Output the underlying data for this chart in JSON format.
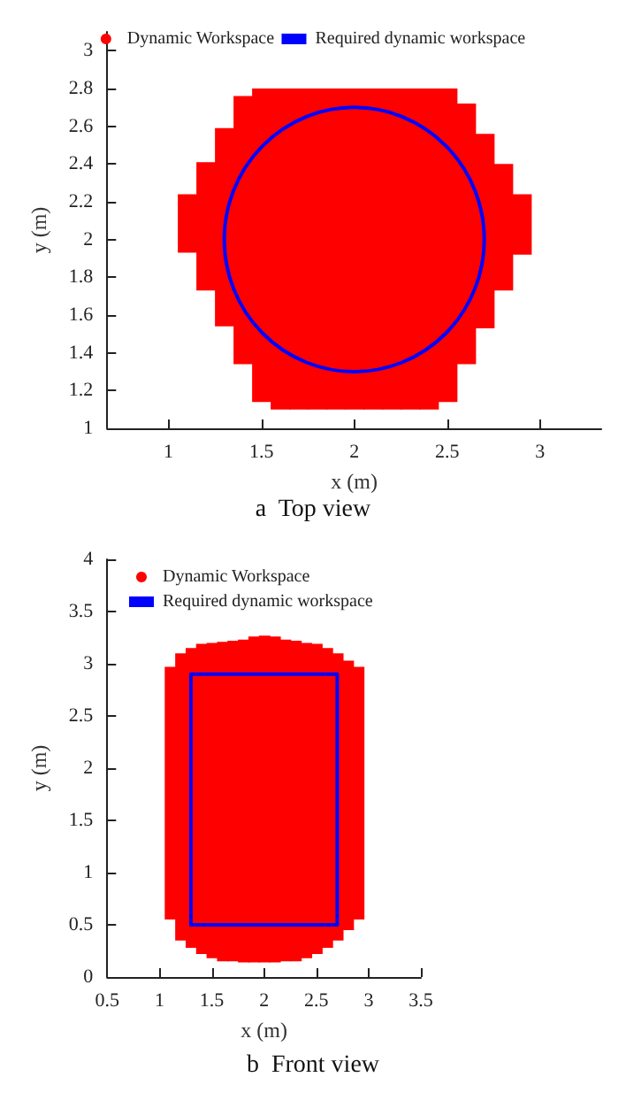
{
  "chart_data": [
    {
      "type": "bar",
      "title": "a  Top view",
      "xlabel": "x (m)",
      "ylabel": "y (m)",
      "xlim": [
        0.67,
        3.33
      ],
      "ylim": [
        1,
        3.1
      ],
      "xticks": [
        1,
        1.5,
        2,
        2.5,
        3
      ],
      "yticks": [
        1,
        1.2,
        1.4,
        1.6,
        1.8,
        2,
        2.2,
        2.4,
        2.6,
        2.8,
        3
      ],
      "legend": "top",
      "grid": false,
      "series": [
        {
          "name": "Dynamic Workspace",
          "color": "#ff0000",
          "x": [
            1.1,
            1.2,
            1.3,
            1.4,
            1.5,
            1.6,
            1.7,
            1.8,
            1.9,
            2,
            2.1,
            2.2,
            2.3,
            2.4,
            2.5,
            2.6,
            2.7,
            2.8,
            2.9
          ],
          "base": [
            1.93,
            1.73,
            1.54,
            1.34,
            1.14,
            1.1,
            1.1,
            1.1,
            1.1,
            1.1,
            1.1,
            1.1,
            1.1,
            1.1,
            1.14,
            1.34,
            1.53,
            1.73,
            1.92
          ],
          "values": [
            0.31,
            0.68,
            1.05,
            1.42,
            1.66,
            1.7,
            1.7,
            1.7,
            1.7,
            1.7,
            1.7,
            1.7,
            1.7,
            1.7,
            1.66,
            1.38,
            1.03,
            0.67,
            0.32
          ]
        },
        {
          "type": "line",
          "name": "Required dynamic workspace",
          "color": "#0000ff",
          "line_style": "solid"
        }
      ]
    },
    {
      "type": "bar",
      "title": "b  Front view",
      "xlabel": "x (m)",
      "ylabel": "y (m)",
      "xlim": [
        0.5,
        3.5
      ],
      "ylim": [
        0,
        4
      ],
      "xticks": [
        0.5,
        1,
        1.5,
        2,
        2.5,
        3,
        3.5
      ],
      "yticks": [
        0,
        0.5,
        1,
        1.5,
        2,
        2.5,
        3,
        3.5,
        4
      ],
      "legend": "top left",
      "grid": false,
      "series": [
        {
          "name": "Dynamic Workspace",
          "color": "#ff0000",
          "x": [
            1.1,
            1.2,
            1.3,
            1.4,
            1.5,
            1.6,
            1.7,
            1.8,
            1.9,
            2,
            2.1,
            2.2,
            2.3,
            2.4,
            2.5,
            2.6,
            2.7,
            2.8,
            2.9
          ],
          "base": [
            0.55,
            0.35,
            0.28,
            0.22,
            0.18,
            0.15,
            0.15,
            0.14,
            0.14,
            0.14,
            0.14,
            0.15,
            0.15,
            0.18,
            0.22,
            0.28,
            0.35,
            0.45,
            0.55
          ],
          "values": [
            2.42,
            2.75,
            2.87,
            2.97,
            3.02,
            3.06,
            3.07,
            3.09,
            3.12,
            3.13,
            3.12,
            3.08,
            3.07,
            3.02,
            2.97,
            2.87,
            2.75,
            2.58,
            2.42
          ]
        },
        {
          "type": "line",
          "name": "Required dynamic workspace",
          "color": "#0000ff",
          "line_style": "solid",
          "x": [
            1.3,
            1.3,
            2.7,
            2.7
          ],
          "values": [
            0.5,
            2.9,
            2.9,
            0.5
          ]
        },
        {
          "type": "line",
          "color": "#0000ff",
          "line_style": "solid",
          "x": [
            1.3,
            2.7
          ],
          "values": [
            0.5,
            0.5
          ]
        }
      ]
    }
  ]
}
